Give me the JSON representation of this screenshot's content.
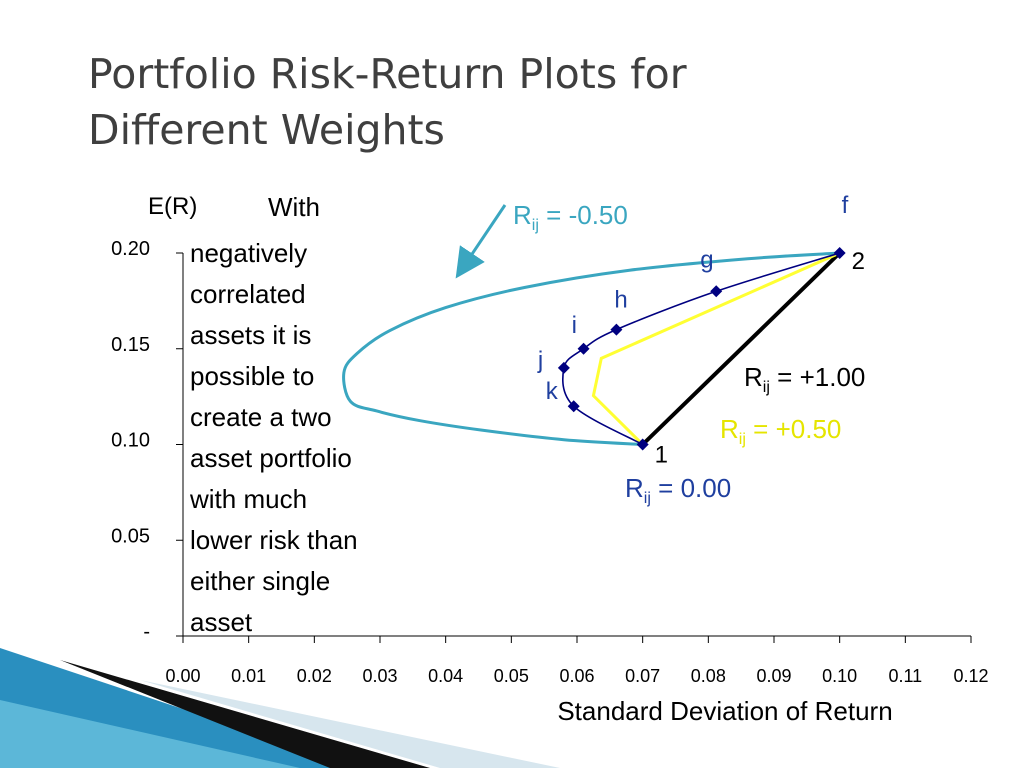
{
  "title_line1": "Portfolio Risk-Return Plots for",
  "title_line2": "Different Weights",
  "note_lines": [
    "negatively",
    "correlated",
    "assets it is",
    "possible to",
    "create a two",
    "asset portfolio",
    "with much",
    "lower risk than",
    "either single",
    "asset"
  ],
  "note_first": "With",
  "colors": {
    "neg050": "#3aa6c0",
    "zero": "#000080",
    "pos050": "#ffff33",
    "pos100": "#000000",
    "label_blue": "#1f3f9f",
    "label_yellow": "#e5e500",
    "decor_blue": "#2a8fbf"
  },
  "chart_data": {
    "type": "line",
    "xlabel": "Standard Deviation of Return",
    "ylabel": "E(R)",
    "xlim": [
      0,
      0.12
    ],
    "ylim": [
      0,
      0.2
    ],
    "x_ticks": [
      0,
      0.01,
      0.02,
      0.03,
      0.04,
      0.05,
      0.06,
      0.07,
      0.08,
      0.09,
      0.1,
      0.11,
      0.12
    ],
    "x_tick_labels": [
      "0.00",
      "0.01",
      "0.02",
      "0.03",
      "0.04",
      "0.05",
      "0.06",
      "0.07",
      "0.08",
      "0.09",
      "0.10",
      "0.11",
      "0.12"
    ],
    "y_ticks": [
      0,
      0.05,
      0.1,
      0.15,
      0.2
    ],
    "y_tick_labels": [
      "-",
      "0.05",
      "0.10",
      "0.15",
      "0.20"
    ],
    "series": [
      {
        "name": "Rij = -0.50",
        "label_main": "R",
        "label_sub": "ij",
        "label_rest": " = -0.50",
        "x": [
          0.07,
          0.058,
          0.0455,
          0.036,
          0.0295,
          0.0255,
          0.0245,
          0.0265,
          0.0315,
          0.04,
          0.052,
          0.068,
          0.086,
          0.1
        ],
        "y": [
          0.1,
          0.1025,
          0.1075,
          0.1125,
          0.1175,
          0.1225,
          0.1375,
          0.1475,
          0.1595,
          0.1715,
          0.182,
          0.191,
          0.197,
          0.2
        ]
      },
      {
        "name": "Rij = 0.00",
        "label_main": "R",
        "label_sub": "ij",
        "label_rest": " = 0.00",
        "x": [
          0.07,
          0.0595,
          0.058,
          0.061,
          0.066,
          0.0812,
          0.1
        ],
        "y": [
          0.1,
          0.12,
          0.14,
          0.15,
          0.16,
          0.18,
          0.2
        ],
        "point_labels": [
          "1",
          "k",
          "j",
          "i",
          "h",
          "g",
          "f"
        ],
        "markers": true
      },
      {
        "name": "Rij = +0.50",
        "label_main": "R",
        "label_sub": "ij",
        "label_rest": " = +0.50",
        "x": [
          0.07,
          0.0625,
          0.0637,
          0.1
        ],
        "y": [
          0.1,
          0.1255,
          0.145,
          0.2
        ]
      },
      {
        "name": "Rij = +1.00",
        "label_main": "R",
        "label_sub": "ij",
        "label_rest": " = +1.00",
        "x": [
          0.07,
          0.1
        ],
        "y": [
          0.1,
          0.2
        ]
      }
    ],
    "annotations": [
      "1",
      "2",
      "f",
      "g",
      "h",
      "i",
      "j",
      "k"
    ],
    "grid": false,
    "legend": "none"
  }
}
